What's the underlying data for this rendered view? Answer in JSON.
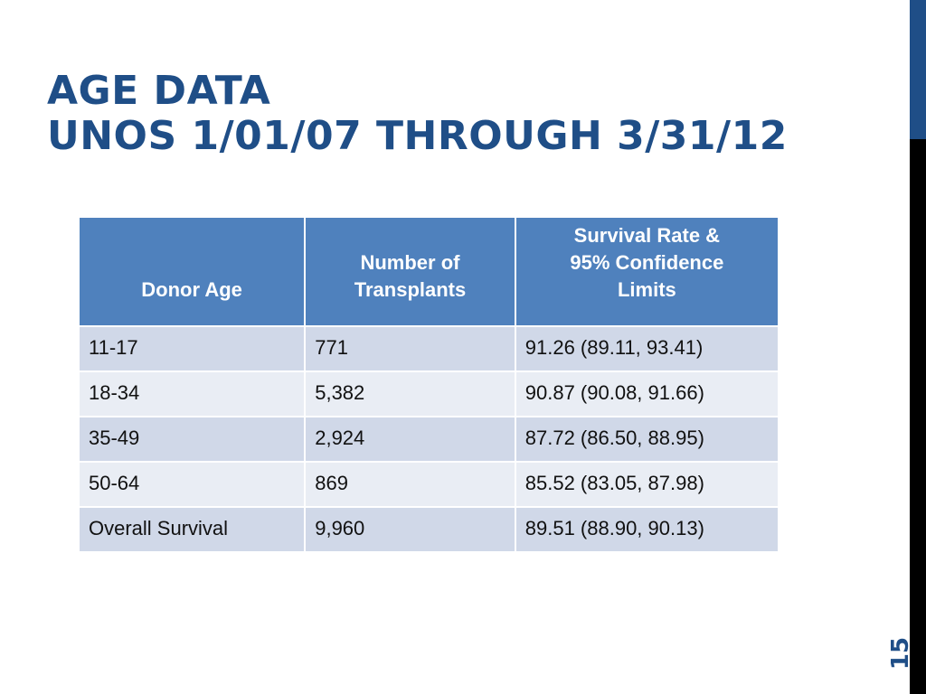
{
  "title": {
    "line1": "AGE DATA",
    "line2": "UNOS 1/01/07 THROUGH 3/31/12"
  },
  "table": {
    "headers": [
      {
        "lines": [
          "Donor Age"
        ]
      },
      {
        "lines": [
          "Number of",
          "Transplants"
        ]
      },
      {
        "lines": [
          "Survival Rate &",
          "95% Confidence",
          "Limits"
        ]
      }
    ],
    "rows": [
      [
        "11-17",
        "771",
        "91.26 (89.11, 93.41)"
      ],
      [
        "18-34",
        "5,382",
        "90.87 (90.08, 91.66)"
      ],
      [
        "35-49",
        "2,924",
        "87.72 (86.50, 88.95)"
      ],
      [
        "50-64",
        "869",
        "85.52 (83.05, 87.98)"
      ],
      [
        "Overall Survival",
        "9,960",
        "89.51 (88.90, 90.13)"
      ]
    ]
  },
  "slide_number": "15",
  "colors": {
    "title": "#1f4e87",
    "header_fill": "#4f81bd",
    "row_odd": "#d0d8e8",
    "row_even": "#e9edf4",
    "side_bar": "#000000",
    "side_bar_accent": "#1f4e87"
  }
}
